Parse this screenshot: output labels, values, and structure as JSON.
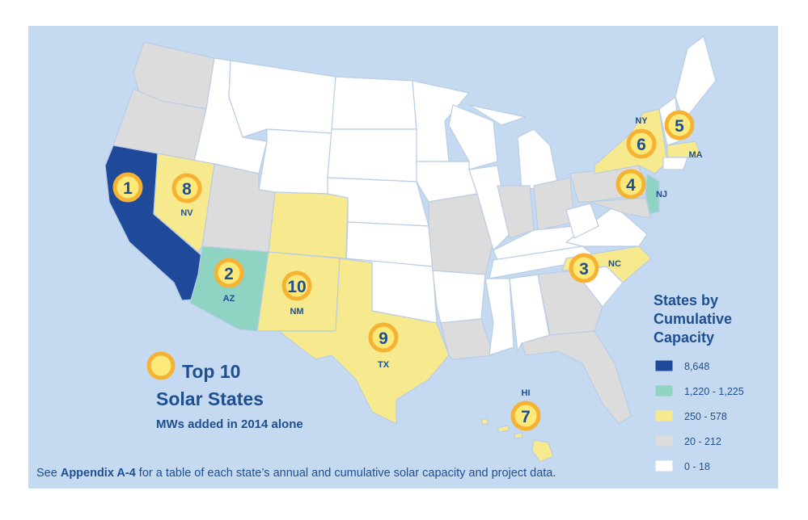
{
  "title_lines": [
    "Top 10",
    "Solar States"
  ],
  "subtitle": "MWs added in 2014 alone",
  "legend": {
    "title_lines": [
      "States by",
      "Cumulative",
      "Capacity"
    ],
    "items": [
      {
        "label": "8,648",
        "color": "#1f4a9a"
      },
      {
        "label": "1,220 - 1,225",
        "color": "#8fd3c2"
      },
      {
        "label": "250 - 578",
        "color": "#f7e98e"
      },
      {
        "label": "20 - 212",
        "color": "#dcdcdc"
      },
      {
        "label": "0 - 18",
        "color": "#ffffff"
      }
    ]
  },
  "markers": [
    {
      "rank": 1,
      "state": "CA"
    },
    {
      "rank": 2,
      "state": "AZ"
    },
    {
      "rank": 3,
      "state": "NC"
    },
    {
      "rank": 4,
      "state": "NJ"
    },
    {
      "rank": 5,
      "state": "MA"
    },
    {
      "rank": 6,
      "state": "NY"
    },
    {
      "rank": 7,
      "state": "HI"
    },
    {
      "rank": 8,
      "state": "NV"
    },
    {
      "rank": 9,
      "state": "TX"
    },
    {
      "rank": 10,
      "state": "NM"
    }
  ],
  "footnote": {
    "prefix": "See ",
    "link": "Appendix A-4",
    "suffix": " for a table of each state’s annual and cumulative solar capacity and project data."
  }
}
